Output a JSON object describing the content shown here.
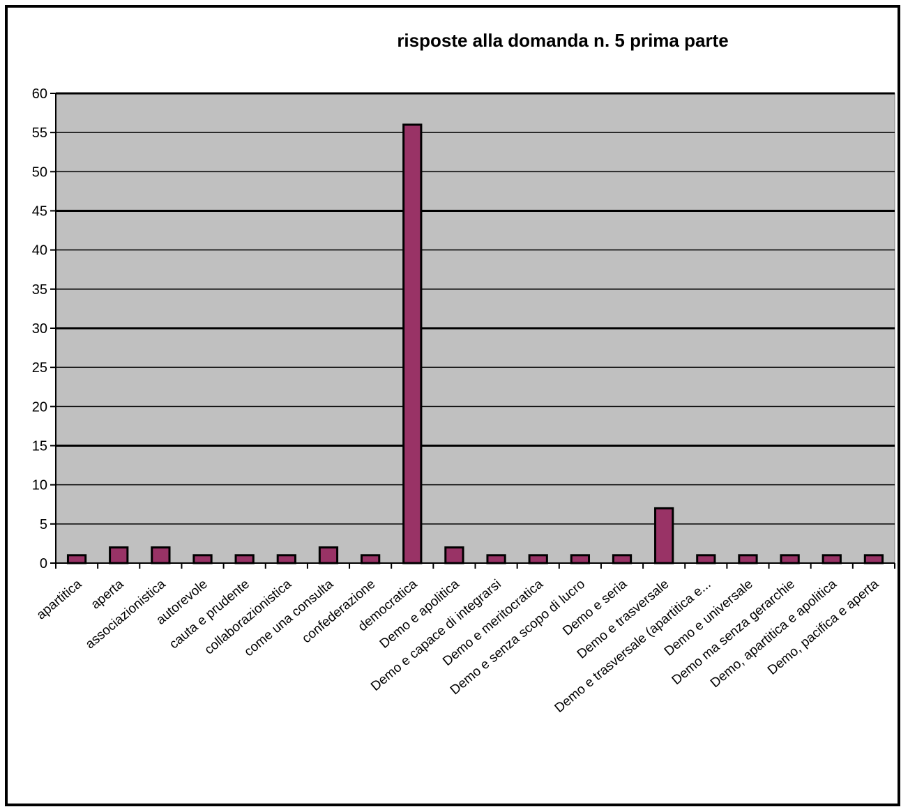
{
  "chart_data": {
    "type": "bar",
    "title": "risposte alla domanda n. 5 prima parte",
    "xlabel": "",
    "ylabel": "",
    "ylim": [
      0,
      60
    ],
    "yticks": [
      0,
      5,
      10,
      15,
      20,
      25,
      30,
      35,
      40,
      45,
      50,
      55,
      60
    ],
    "grid": true,
    "legend": "none",
    "categories": [
      "apartitica",
      "aperta",
      "associazionistica",
      "autorevole",
      "cauta e prudente",
      "collaborazionistica",
      "come una consulta",
      "confederazione",
      "democratica",
      "Demo e apolitica",
      "Demo e capace di integrarsi",
      "Demo e meritocratica",
      "Demo e senza scopo di lucro",
      "Demo e seria",
      "Demo e trasversale",
      "Demo e trasversale (apartitica e...",
      "Demo e universale",
      "Demo ma senza gerarchie",
      "Demo, apartitica e apolitica",
      "Demo, pacifica e aperta"
    ],
    "values": [
      1,
      2,
      2,
      1,
      1,
      1,
      2,
      1,
      56,
      2,
      1,
      1,
      1,
      1,
      7,
      1,
      1,
      1,
      1,
      1
    ],
    "colors": {
      "bar": "#993366",
      "plot_background": "#C0C0C0",
      "gridline": "#000000",
      "frame": "#000000"
    }
  }
}
